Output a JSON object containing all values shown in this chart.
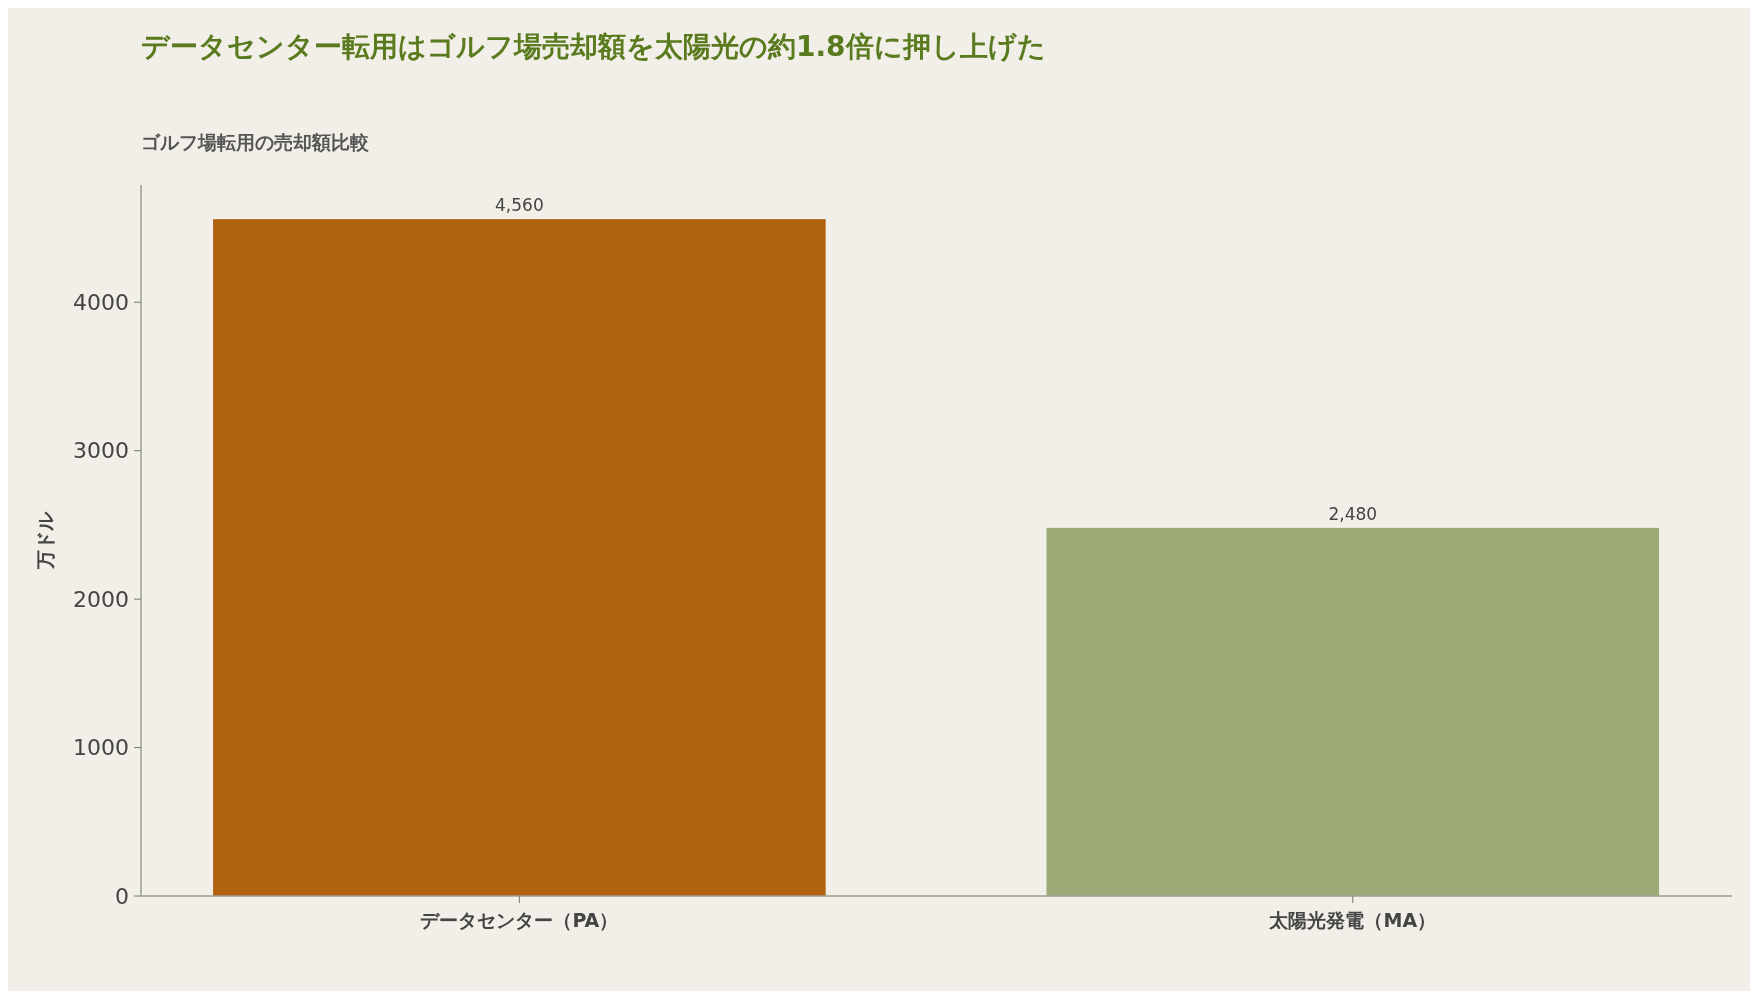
{
  "chart_data": {
    "type": "bar",
    "title": "データセンター転用はゴルフ場売却額を太陽光の約1.8倍に押し上げた",
    "subtitle": "ゴルフ場転用の売却額比較",
    "ylabel": "万ドル",
    "categories": [
      "データセンター（PA）",
      "太陽光発電（MA）"
    ],
    "values": [
      4560,
      2480
    ],
    "colors": [
      "#b0620f",
      "#9caa76"
    ],
    "value_labels": [
      "4,560",
      "2,480"
    ],
    "ylim": [
      0,
      4790
    ],
    "yticks": [
      0,
      1000,
      2000,
      3000,
      4000
    ],
    "grid": false
  }
}
